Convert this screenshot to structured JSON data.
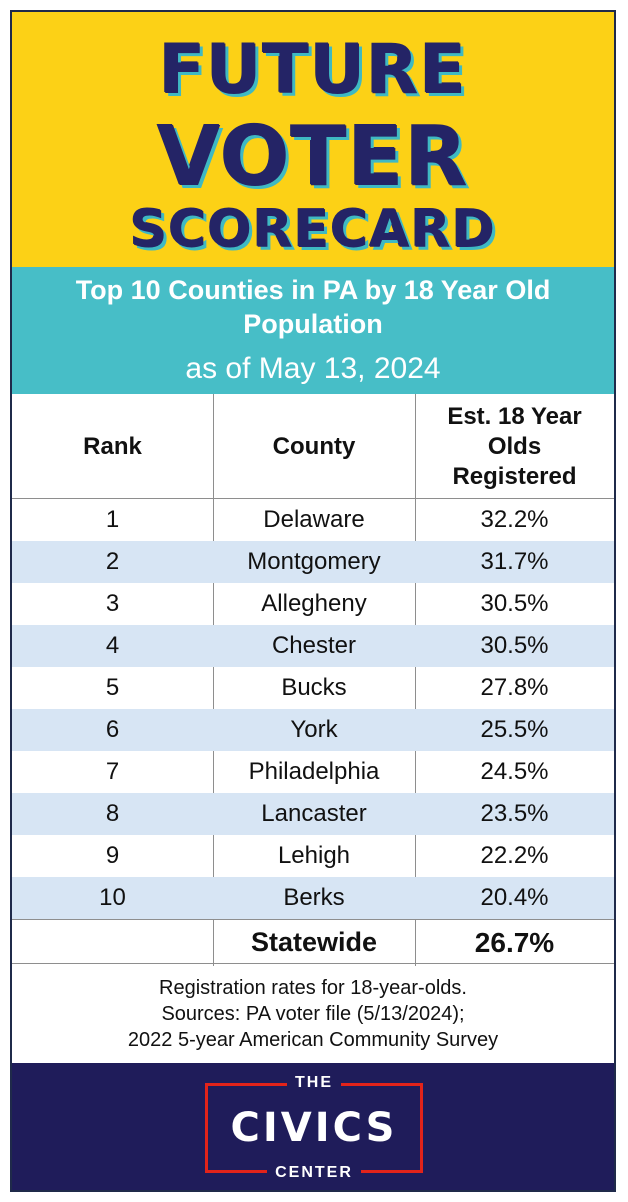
{
  "header": {
    "line1": "FUTURE",
    "line2": "VOTER",
    "line3": "SCORECARD"
  },
  "subheader": {
    "title": "Top 10 Counties in PA by 18 Year Old Population",
    "date": "as of May 13, 2024"
  },
  "chart_data": {
    "type": "table",
    "columns": [
      "Rank",
      "County",
      "Est. 18 Year Olds Registered"
    ],
    "rows": [
      [
        "1",
        "Delaware",
        "32.2%"
      ],
      [
        "2",
        "Montgomery",
        "31.7%"
      ],
      [
        "3",
        "Allegheny",
        "30.5%"
      ],
      [
        "4",
        "Chester",
        "30.5%"
      ],
      [
        "5",
        "Bucks",
        "27.8%"
      ],
      [
        "6",
        "York",
        "25.5%"
      ],
      [
        "7",
        "Philadelphia",
        "24.5%"
      ],
      [
        "8",
        "Lancaster",
        "23.5%"
      ],
      [
        "9",
        "Lehigh",
        "22.2%"
      ],
      [
        "10",
        "Berks",
        "20.4%"
      ]
    ],
    "total": {
      "label": "Statewide",
      "value": "26.7%"
    }
  },
  "notes": {
    "line1": "Registration rates for 18-year-olds.",
    "line2": "Sources: PA voter file (5/13/2024);",
    "line3": "2022 5-year American Community Survey"
  },
  "logo": {
    "top": "THE",
    "main": "CIVICS",
    "bottom": "CENTER"
  },
  "colors": {
    "yellow": "#fcd116",
    "teal": "#47bec7",
    "navy": "#242466",
    "row_alt": "#d7e5f4",
    "footer": "#1f1c5a",
    "logo_red": "#e2231a"
  }
}
